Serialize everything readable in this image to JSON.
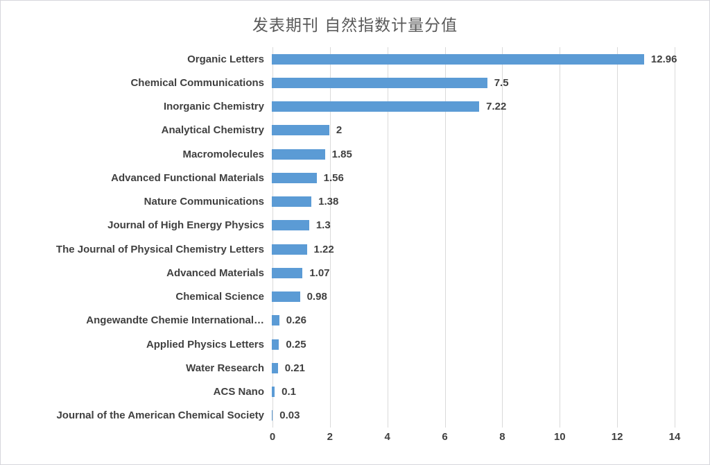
{
  "chart_data": {
    "type": "bar",
    "orientation": "horizontal",
    "title": "发表期刊 自然指数计量分值",
    "categories": [
      "Organic Letters",
      "Chemical Communications",
      "Inorganic Chemistry",
      "Analytical Chemistry",
      "Macromolecules",
      "Advanced Functional Materials",
      "Nature Communications",
      "Journal of High Energy Physics",
      "The Journal of Physical Chemistry Letters",
      "Advanced Materials",
      "Chemical Science",
      "Angewandte Chemie International…",
      "Applied Physics Letters",
      "Water Research",
      "ACS Nano",
      "Journal of the American Chemical Society"
    ],
    "values": [
      12.96,
      7.5,
      7.22,
      2,
      1.85,
      1.56,
      1.38,
      1.3,
      1.22,
      1.07,
      0.98,
      0.26,
      0.25,
      0.21,
      0.1,
      0.03
    ],
    "value_labels": [
      "12.96",
      "7.5",
      "7.22",
      "2",
      "1.85",
      "1.56",
      "1.38",
      "1.3",
      "1.22",
      "1.07",
      "0.98",
      "0.26",
      "0.25",
      "0.21",
      "0.1",
      "0.03"
    ],
    "xlabel": "",
    "ylabel": "",
    "xlim": [
      0,
      14
    ],
    "x_ticks": [
      0,
      2,
      4,
      6,
      8,
      10,
      12,
      14
    ],
    "grid": "vertical",
    "legend": "none",
    "colors": {
      "bar": "#5b9bd5",
      "label_text": "#404040",
      "gridline": "#d9d9d9",
      "title_text": "#595959",
      "border": "#d6d6dc"
    }
  }
}
